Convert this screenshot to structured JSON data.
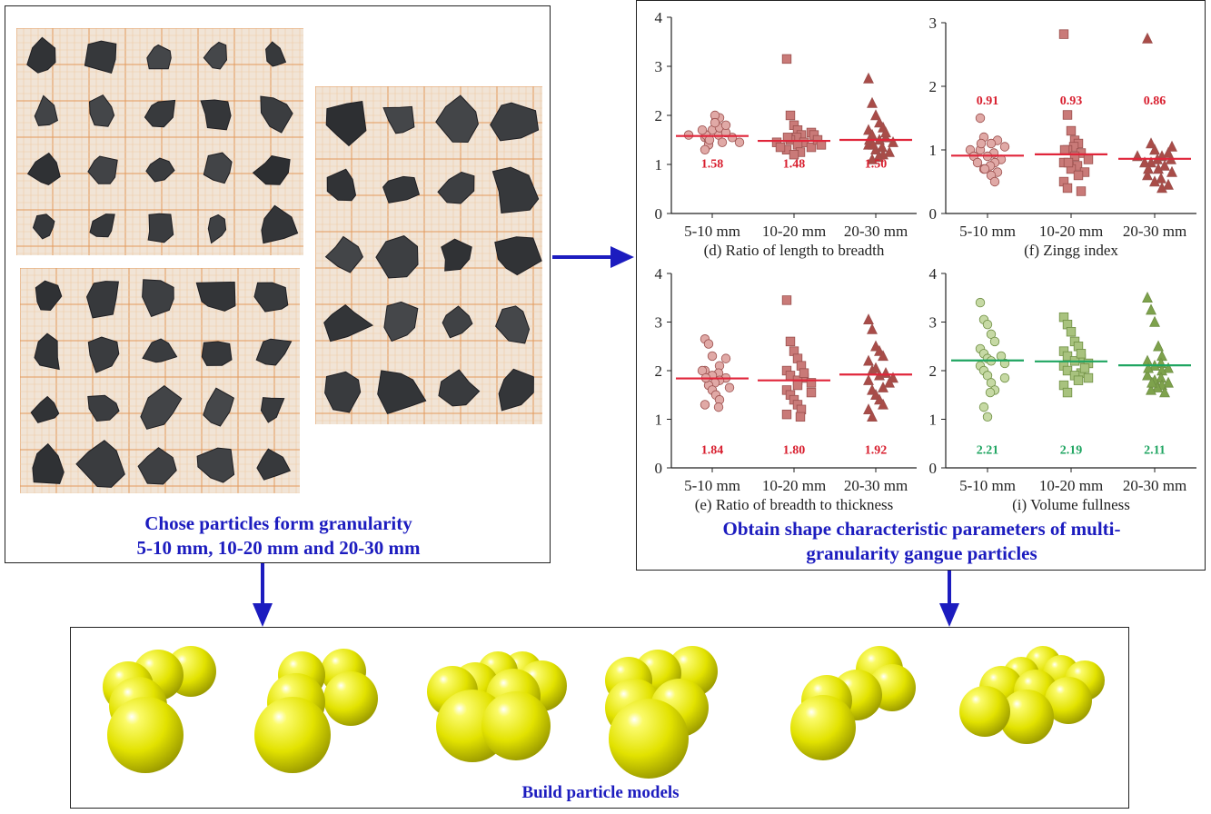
{
  "left_panel": {
    "caption_line1": "Chose particles form granularity",
    "caption_line2": "5-10 mm, 10-20 mm and 20-30 mm"
  },
  "right_panel": {
    "caption_line1": "Obtain shape characteristic parameters of multi-",
    "caption_line2": "granularity gangue particles"
  },
  "bottom_panel": {
    "caption": "Build particle models"
  },
  "colors": {
    "caption": "#1c1cbf",
    "arrow": "#1c1cbf",
    "red_series": "#c97a78",
    "red_line": "#e0253a",
    "red_label": "#d81e2e",
    "green_series": "#a8c27e",
    "green_line": "#1fa561",
    "green_label": "#1fa561",
    "sphere": "#e6e600"
  },
  "chart_data": [
    {
      "type": "scatter",
      "caption": "(d) Ratio of length to breadth",
      "categories": [
        "5-10 mm",
        "10-20 mm",
        "20-30 mm"
      ],
      "ylim": [
        0,
        4
      ],
      "yticks": [
        0,
        1,
        2,
        3,
        4
      ],
      "palette": "red",
      "markers": [
        "circle",
        "square",
        "triangle"
      ],
      "means": [
        1.58,
        1.48,
        1.5
      ],
      "mean_labels": [
        "1.58",
        "1.48",
        "1.50"
      ],
      "label_y": 1.05,
      "points": [
        [
          1.55,
          1.6,
          1.7,
          1.9,
          1.95,
          2.0,
          1.5,
          1.45,
          1.6,
          1.75,
          1.85,
          1.4,
          1.55,
          1.65,
          1.5,
          1.3,
          1.6,
          1.7,
          1.8,
          1.45
        ],
        [
          3.15,
          2.0,
          1.8,
          1.7,
          1.6,
          1.55,
          1.5,
          1.45,
          1.4,
          1.35,
          1.3,
          1.25,
          1.2,
          1.55,
          1.65,
          1.45,
          1.35,
          1.6,
          1.5,
          1.4
        ],
        [
          2.75,
          2.25,
          2.0,
          1.85,
          1.75,
          1.7,
          1.6,
          1.55,
          1.5,
          1.45,
          1.4,
          1.35,
          1.3,
          1.25,
          1.2,
          1.15,
          1.1,
          1.65,
          1.5,
          1.4
        ]
      ]
    },
    {
      "type": "scatter",
      "caption": "(f) Zingg index",
      "categories": [
        "5-10 mm",
        "10-20 mm",
        "20-30 mm"
      ],
      "ylim": [
        0,
        3
      ],
      "yticks": [
        0,
        1,
        2,
        3
      ],
      "palette": "red",
      "markers": [
        "circle",
        "square",
        "triangle"
      ],
      "means": [
        0.91,
        0.93,
        0.86
      ],
      "mean_labels": [
        "0.91",
        "0.93",
        "0.86"
      ],
      "label_y": 1.8,
      "points": [
        [
          1.5,
          1.2,
          1.15,
          1.1,
          1.05,
          1.0,
          0.95,
          0.9,
          0.85,
          0.8,
          0.75,
          0.7,
          0.65,
          0.6,
          0.5,
          1.0,
          0.9,
          0.8,
          1.1,
          0.7
        ],
        [
          2.82,
          1.55,
          1.3,
          1.15,
          1.1,
          1.05,
          1.0,
          0.95,
          0.9,
          0.85,
          0.8,
          0.75,
          0.7,
          0.65,
          0.6,
          0.5,
          0.4,
          0.35,
          1.0,
          0.8
        ],
        [
          2.75,
          1.1,
          1.0,
          0.95,
          0.9,
          0.85,
          0.8,
          0.75,
          0.7,
          0.65,
          0.6,
          0.55,
          0.5,
          0.45,
          0.4,
          0.9,
          0.85,
          0.8,
          0.7,
          1.05
        ]
      ]
    },
    {
      "type": "scatter",
      "caption": "(e) Ratio of breadth to thickness",
      "categories": [
        "5-10 mm",
        "10-20 mm",
        "20-30 mm"
      ],
      "ylim": [
        0,
        4
      ],
      "yticks": [
        0,
        1,
        2,
        3,
        4
      ],
      "palette": "red",
      "markers": [
        "circle",
        "square",
        "triangle"
      ],
      "means": [
        1.84,
        1.8,
        1.92
      ],
      "mean_labels": [
        "1.84",
        "1.80",
        "1.92"
      ],
      "label_y": 0.4,
      "points": [
        [
          2.65,
          2.55,
          2.3,
          2.25,
          2.1,
          2.0,
          1.95,
          1.9,
          1.85,
          1.8,
          1.75,
          1.7,
          1.6,
          1.5,
          1.4,
          1.3,
          1.25,
          2.0,
          1.85,
          1.65
        ],
        [
          3.45,
          2.6,
          2.4,
          2.25,
          2.1,
          2.0,
          1.9,
          1.85,
          1.8,
          1.75,
          1.6,
          1.5,
          1.4,
          1.3,
          1.2,
          1.1,
          1.05,
          1.95,
          1.7,
          1.55
        ],
        [
          3.05,
          2.85,
          2.5,
          2.4,
          2.3,
          2.2,
          2.0,
          1.95,
          1.9,
          1.85,
          1.8,
          1.6,
          1.5,
          1.4,
          1.3,
          1.2,
          1.05,
          2.05,
          1.75,
          1.65
        ]
      ]
    },
    {
      "type": "scatter",
      "caption": "(i) Volume fullness",
      "categories": [
        "5-10 mm",
        "10-20 mm",
        "20-30 mm"
      ],
      "ylim": [
        0,
        4
      ],
      "yticks": [
        0,
        1,
        2,
        3,
        4
      ],
      "palette": "green",
      "markers": [
        "circle",
        "square",
        "triangle"
      ],
      "means": [
        2.21,
        2.19,
        2.11
      ],
      "mean_labels": [
        "2.21",
        "2.19",
        "2.11"
      ],
      "label_y": 0.4,
      "points": [
        [
          3.4,
          3.05,
          2.95,
          2.75,
          2.6,
          2.45,
          2.35,
          2.25,
          2.2,
          2.15,
          2.1,
          2.0,
          1.9,
          1.75,
          1.6,
          1.55,
          1.25,
          1.05,
          2.3,
          1.85
        ],
        [
          3.1,
          2.95,
          2.8,
          2.6,
          2.5,
          2.4,
          2.3,
          2.25,
          2.2,
          2.15,
          2.1,
          2.0,
          1.95,
          1.9,
          1.8,
          1.7,
          1.55,
          2.35,
          2.05,
          1.85
        ],
        [
          3.5,
          3.25,
          3.0,
          2.5,
          2.3,
          2.2,
          2.15,
          2.1,
          2.05,
          2.0,
          1.9,
          1.85,
          1.8,
          1.75,
          1.7,
          1.65,
          1.6,
          1.55,
          2.05,
          1.75
        ]
      ]
    }
  ]
}
